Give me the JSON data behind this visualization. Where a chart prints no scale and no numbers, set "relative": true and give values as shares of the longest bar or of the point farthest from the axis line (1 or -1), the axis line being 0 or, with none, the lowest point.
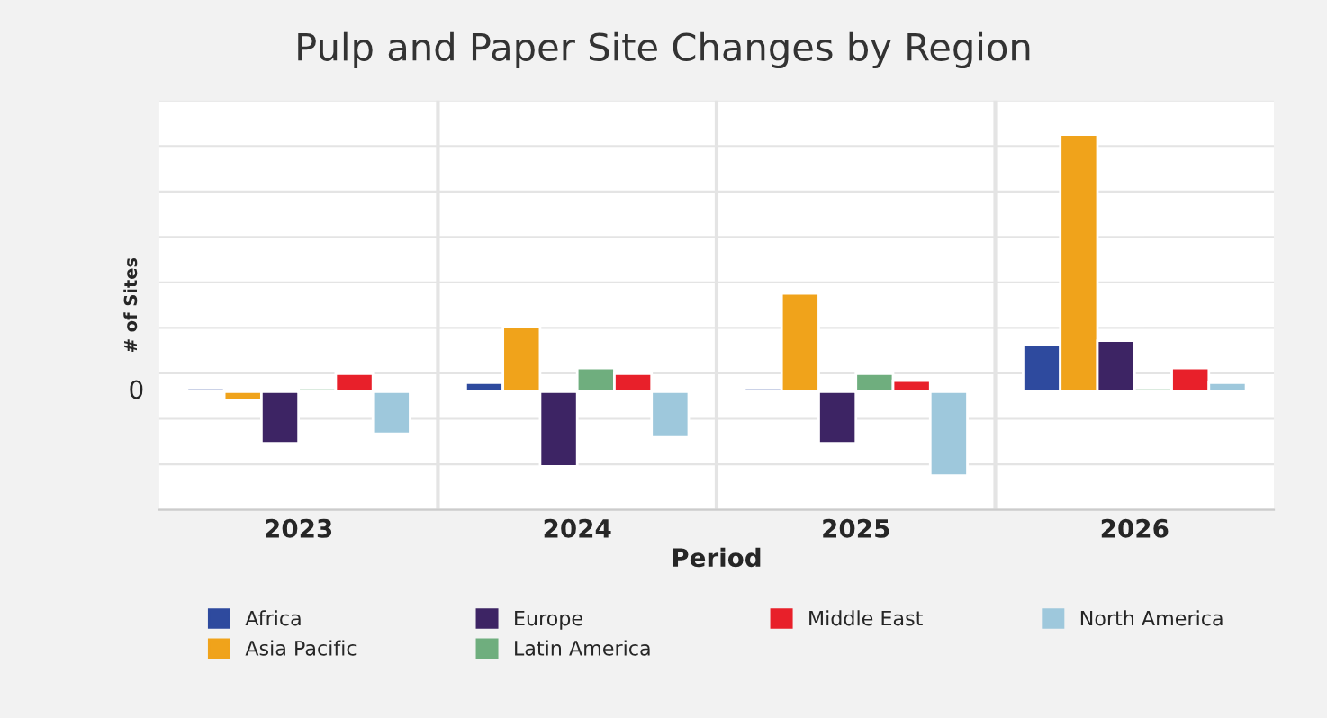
{
  "chart_data": {
    "type": "bar",
    "title": "Pulp and Paper Site Changes by Region",
    "xlabel": "Period",
    "ylabel": "# of Sites",
    "relative": true,
    "grid": true,
    "legend": "bottom",
    "annotations": [
      "0"
    ],
    "categories": [
      "2023",
      "2024",
      "2025",
      "2026"
    ],
    "series": [
      {
        "name": "Africa",
        "color": "#2e4a9e",
        "values": [
          0.014,
          0.035,
          0.014,
          0.184
        ]
      },
      {
        "name": "Asia Pacific",
        "color": "#f0a31b",
        "values": [
          -0.035,
          0.255,
          0.383,
          1
        ]
      },
      {
        "name": "Europe",
        "color": "#3d2464",
        "values": [
          -0.2,
          -0.29,
          -0.2,
          0.199
        ]
      },
      {
        "name": "Latin America",
        "color": "#6fae7e",
        "values": [
          0.014,
          0.092,
          0.07,
          0.014
        ]
      },
      {
        "name": "Middle East",
        "color": "#e8202a",
        "values": [
          0.07,
          0.07,
          0.043,
          0.092
        ]
      },
      {
        "name": "North America",
        "color": "#9ec8dc",
        "values": [
          -0.163,
          -0.177,
          -0.326,
          0.035
        ]
      }
    ]
  }
}
